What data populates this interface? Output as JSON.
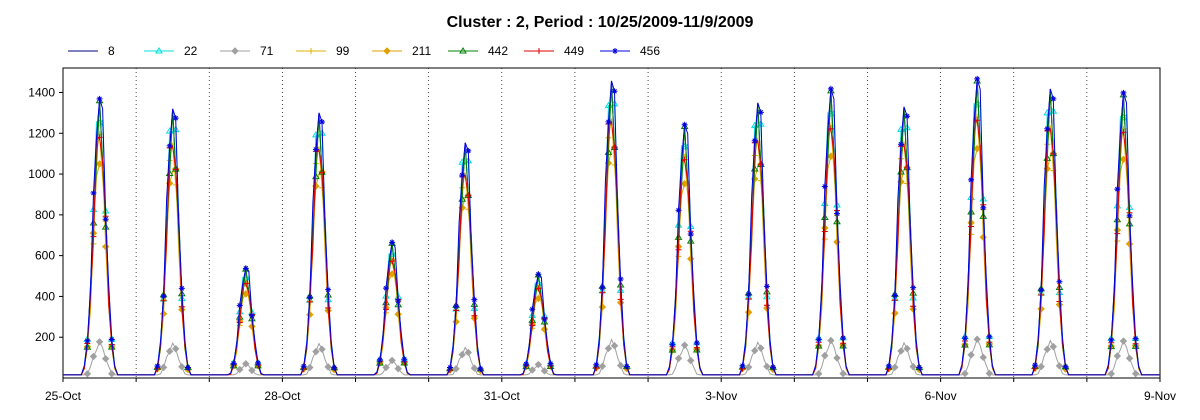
{
  "chart_data": {
    "type": "line",
    "title": "Cluster : 2, Period : 10/25/2009-11/9/2009",
    "xlabel": "",
    "ylabel": "",
    "x_tick_labels": [
      "25-Oct",
      "28-Oct",
      "31-Oct",
      "3-Nov",
      "6-Nov",
      "9-Nov"
    ],
    "y_ticks": [
      200,
      400,
      600,
      800,
      1000,
      1200,
      1400
    ],
    "xlim_days": [
      0,
      15
    ],
    "ylim": [
      0,
      1520
    ],
    "grid": "vertical dotted",
    "legend_position": "top",
    "day_peaks": [
      1400,
      1350,
      550,
      1330,
      680,
      1180,
      520,
      1490,
      1270,
      1380,
      1450,
      1360,
      1500,
      1450,
      1430
    ],
    "series": [
      {
        "name": "8",
        "color": "#000080",
        "marker": "none",
        "scale": 0.93
      },
      {
        "name": "22",
        "color": "#00e0e0",
        "marker": "triangle",
        "scale": 0.97
      },
      {
        "name": "71",
        "color": "#a0a0a0",
        "marker": "diamond",
        "scale": 0.12
      },
      {
        "name": "99",
        "color": "#e0b000",
        "marker": "plus",
        "scale": 0.85
      },
      {
        "name": "211",
        "color": "#e0a000",
        "marker": "diamond",
        "scale": 0.8
      },
      {
        "name": "442",
        "color": "#008000",
        "marker": "triangle",
        "scale": 0.9
      },
      {
        "name": "449",
        "color": "#e00000",
        "marker": "plus",
        "scale": 0.88
      },
      {
        "name": "456",
        "color": "#0000e0",
        "marker": "star",
        "scale": 1.0
      }
    ]
  }
}
